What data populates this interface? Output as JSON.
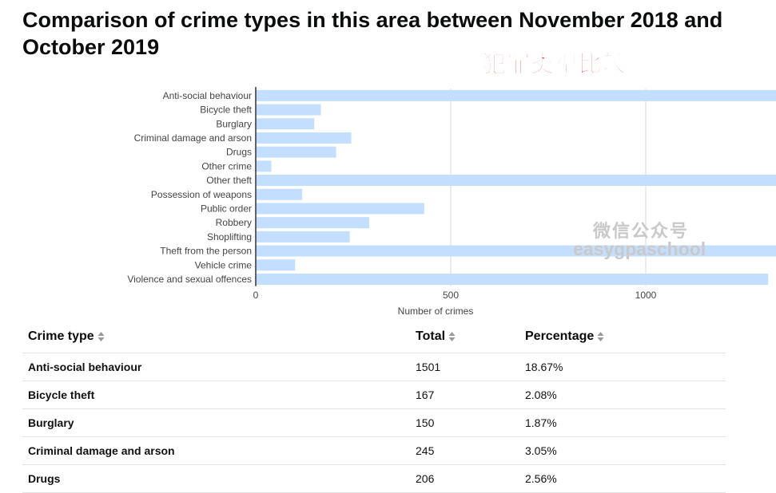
{
  "page": {
    "title": "Comparison of crime types in this area between November 2018 and October 2019",
    "overlay_caption": "犯罪类型比较",
    "watermark_cn": "微信公众号",
    "watermark_en": "easygpaschool"
  },
  "chart_data": {
    "type": "bar",
    "orientation": "horizontal",
    "title": "",
    "xlabel": "Number of crimes",
    "ylabel": "",
    "xlim": [
      0,
      1900
    ],
    "xticks": [
      0,
      500,
      1000,
      1500
    ],
    "grid": true,
    "bar_color": "#c3deff",
    "categories": [
      "Anti-social behaviour",
      "Bicycle theft",
      "Burglary",
      "Criminal damage and arson",
      "Drugs",
      "Other crime",
      "Other theft",
      "Possession of weapons",
      "Public order",
      "Robbery",
      "Shoplifting",
      "Theft from the person",
      "Vehicle crime",
      "Violence and sexual offences"
    ],
    "values": [
      1501,
      167,
      150,
      245,
      206,
      40,
      1846,
      119,
      432,
      291,
      241,
      1393,
      101,
      1314
    ]
  },
  "table": {
    "headers": [
      "Crime type",
      "Total",
      "Percentage"
    ],
    "rows": [
      {
        "type": "Anti-social behaviour",
        "total": "1501",
        "percentage": "18.67%"
      },
      {
        "type": "Bicycle theft",
        "total": "167",
        "percentage": "2.08%"
      },
      {
        "type": "Burglary",
        "total": "150",
        "percentage": "1.87%"
      },
      {
        "type": "Criminal damage and arson",
        "total": "245",
        "percentage": "3.05%"
      },
      {
        "type": "Drugs",
        "total": "206",
        "percentage": "2.56%"
      }
    ]
  }
}
